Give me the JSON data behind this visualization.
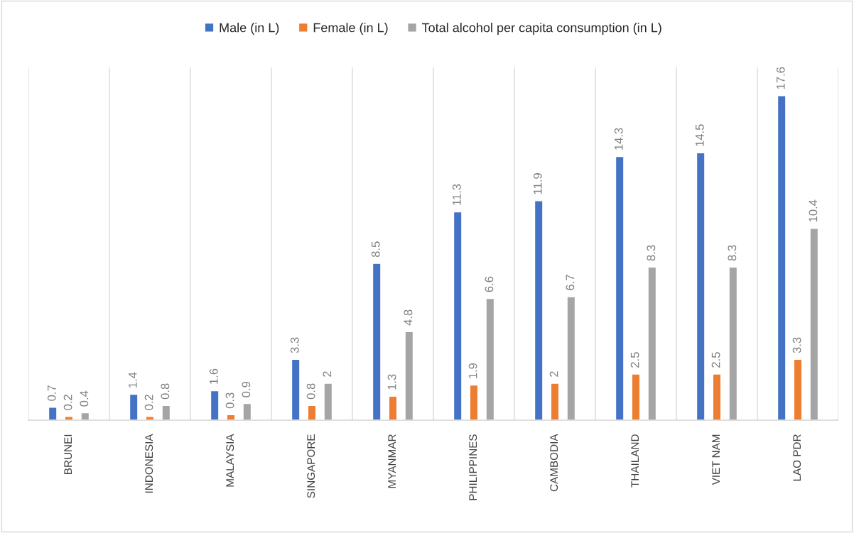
{
  "chart_data": {
    "type": "bar",
    "categories": [
      "BRUNEI",
      "INDONESIA",
      "MALAYSIA",
      "SINGAPORE",
      "MYANMAR",
      "PHILIPPINES",
      "CAMBODIA",
      "THAILAND",
      "VIET NAM",
      "LAO PDR"
    ],
    "series": [
      {
        "name": "Male (in L)",
        "color": "#4472c4",
        "values": [
          0.7,
          1.4,
          1.6,
          3.3,
          8.5,
          11.3,
          11.9,
          14.3,
          14.5,
          17.6
        ]
      },
      {
        "name": "Female (in L)",
        "color": "#ed7d31",
        "values": [
          0.2,
          0.2,
          0.3,
          0.8,
          1.3,
          1.9,
          2,
          2.5,
          2.5,
          3.3
        ]
      },
      {
        "name": "Total alcohol per capita consumption (in L)",
        "color": "#a5a5a5",
        "values": [
          0.4,
          0.8,
          0.9,
          2,
          4.8,
          6.6,
          6.7,
          8.3,
          8.3,
          10.4
        ]
      }
    ],
    "data_labels": true,
    "legend": "top",
    "grid": "x"
  }
}
